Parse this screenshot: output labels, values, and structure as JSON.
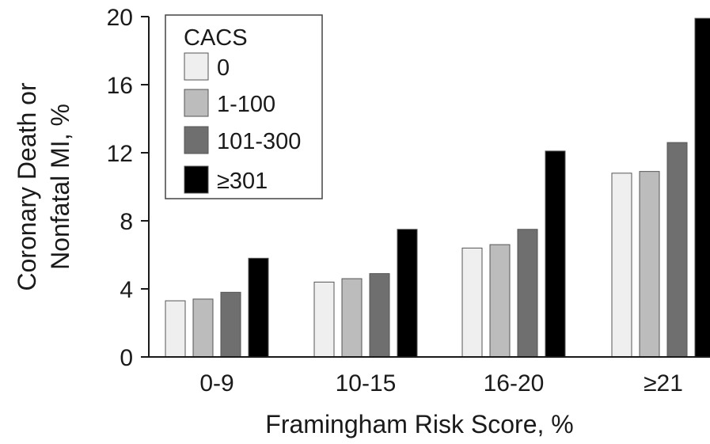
{
  "chart_data": {
    "type": "bar",
    "xlabel": "Framingham Risk Score, %",
    "ylabel_lines": [
      "Coronary Death or",
      "Nonfatal MI, %"
    ],
    "categories": [
      "0-9",
      "10-15",
      "16-20",
      "≥21"
    ],
    "ylim": [
      0,
      20
    ],
    "yticks": [
      "0",
      "4",
      "8",
      "12",
      "16",
      "20"
    ],
    "grid": false,
    "legend": {
      "title": "CACS",
      "placement": "top-left"
    },
    "series": [
      {
        "name": "0",
        "color": "#efefef",
        "values": [
          3.3,
          4.4,
          6.4,
          10.8
        ]
      },
      {
        "name": "1-100",
        "color": "#bcbcbc",
        "values": [
          3.4,
          4.6,
          6.6,
          10.9
        ]
      },
      {
        "name": "101-300",
        "color": "#6f6f6f",
        "values": [
          3.8,
          4.9,
          7.5,
          12.6
        ]
      },
      {
        "name": "≥301",
        "color": "#000000",
        "values": [
          5.8,
          7.5,
          12.1,
          19.9
        ]
      }
    ]
  }
}
